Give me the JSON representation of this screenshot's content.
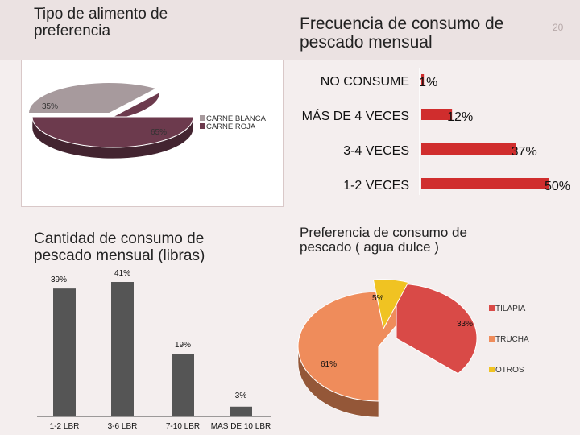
{
  "slide": {
    "number": "20"
  },
  "charts": {
    "food_preference": {
      "title_line1": "Tipo de alimento de",
      "title_line2": "preferencia",
      "labels": [
        "35%",
        "65%"
      ],
      "legend": [
        "CARNE BLANCA",
        "CARNE ROJA"
      ]
    },
    "monthly_frequency": {
      "title_line1": "Frecuencia de consumo de",
      "title_line2": "pescado mensual",
      "categories": [
        "NO CONSUME",
        "MÁS DE 4 VECES",
        "3-4 VECES",
        "1-2 VECES"
      ],
      "labels": [
        "1%",
        "12%",
        "37%",
        "50%"
      ]
    },
    "monthly_quantity": {
      "title_line1": "Cantidad  de consumo de",
      "title_line2": "pescado mensual (libras)",
      "categories": [
        "1-2 LBR",
        "3-6 LBR",
        "7-10 LBR",
        "MAS DE 10 LBR"
      ],
      "labels": [
        "39%",
        "41%",
        "19%",
        "3%"
      ]
    },
    "freshwater_preference": {
      "title_line1": "Preferencia de consumo de",
      "title_line2": "pescado ( agua dulce )",
      "labels": [
        "5%",
        "33%",
        "61%"
      ],
      "legend": [
        "TILAPIA",
        "TRUCHA",
        "OTROS"
      ]
    }
  },
  "colors": {
    "page": "#f4eeee",
    "pie1_white": "#a79a9d",
    "pie1_red": "#6c3a4d",
    "bar_red": "#d02d2d",
    "bar_gray": "#555555",
    "pie2_tilapia": "#d94a47",
    "pie2_trucha": "#ef8c5b",
    "pie2_otros": "#f0c322"
  },
  "chart_data": [
    {
      "type": "pie",
      "title": "Tipo de alimento de preferencia",
      "categories": [
        "CARNE BLANCA",
        "CARNE ROJA"
      ],
      "values": [
        35,
        65
      ],
      "legend_position": "right"
    },
    {
      "type": "bar",
      "orientation": "horizontal",
      "title": "Frecuencia de consumo de pescado mensual",
      "categories": [
        "NO CONSUME",
        "MÁS DE 4 VECES",
        "3-4 VECES",
        "1-2 VECES"
      ],
      "values": [
        1,
        12,
        37,
        50
      ],
      "unit": "%",
      "xlim": [
        0,
        50
      ]
    },
    {
      "type": "bar",
      "title": "Cantidad  de consumo de pescado mensual (libras)",
      "categories": [
        "1-2 LBR",
        "3-6 LBR",
        "7-10 LBR",
        "MAS DE 10 LBR"
      ],
      "values": [
        39,
        41,
        19,
        3
      ],
      "unit": "%",
      "ylim": [
        0,
        41
      ]
    },
    {
      "type": "pie",
      "title": "Preferencia de consumo de pescado ( agua dulce )",
      "categories": [
        "TILAPIA",
        "TRUCHA",
        "OTROS"
      ],
      "values": [
        33,
        61,
        5
      ],
      "legend_position": "right"
    }
  ]
}
